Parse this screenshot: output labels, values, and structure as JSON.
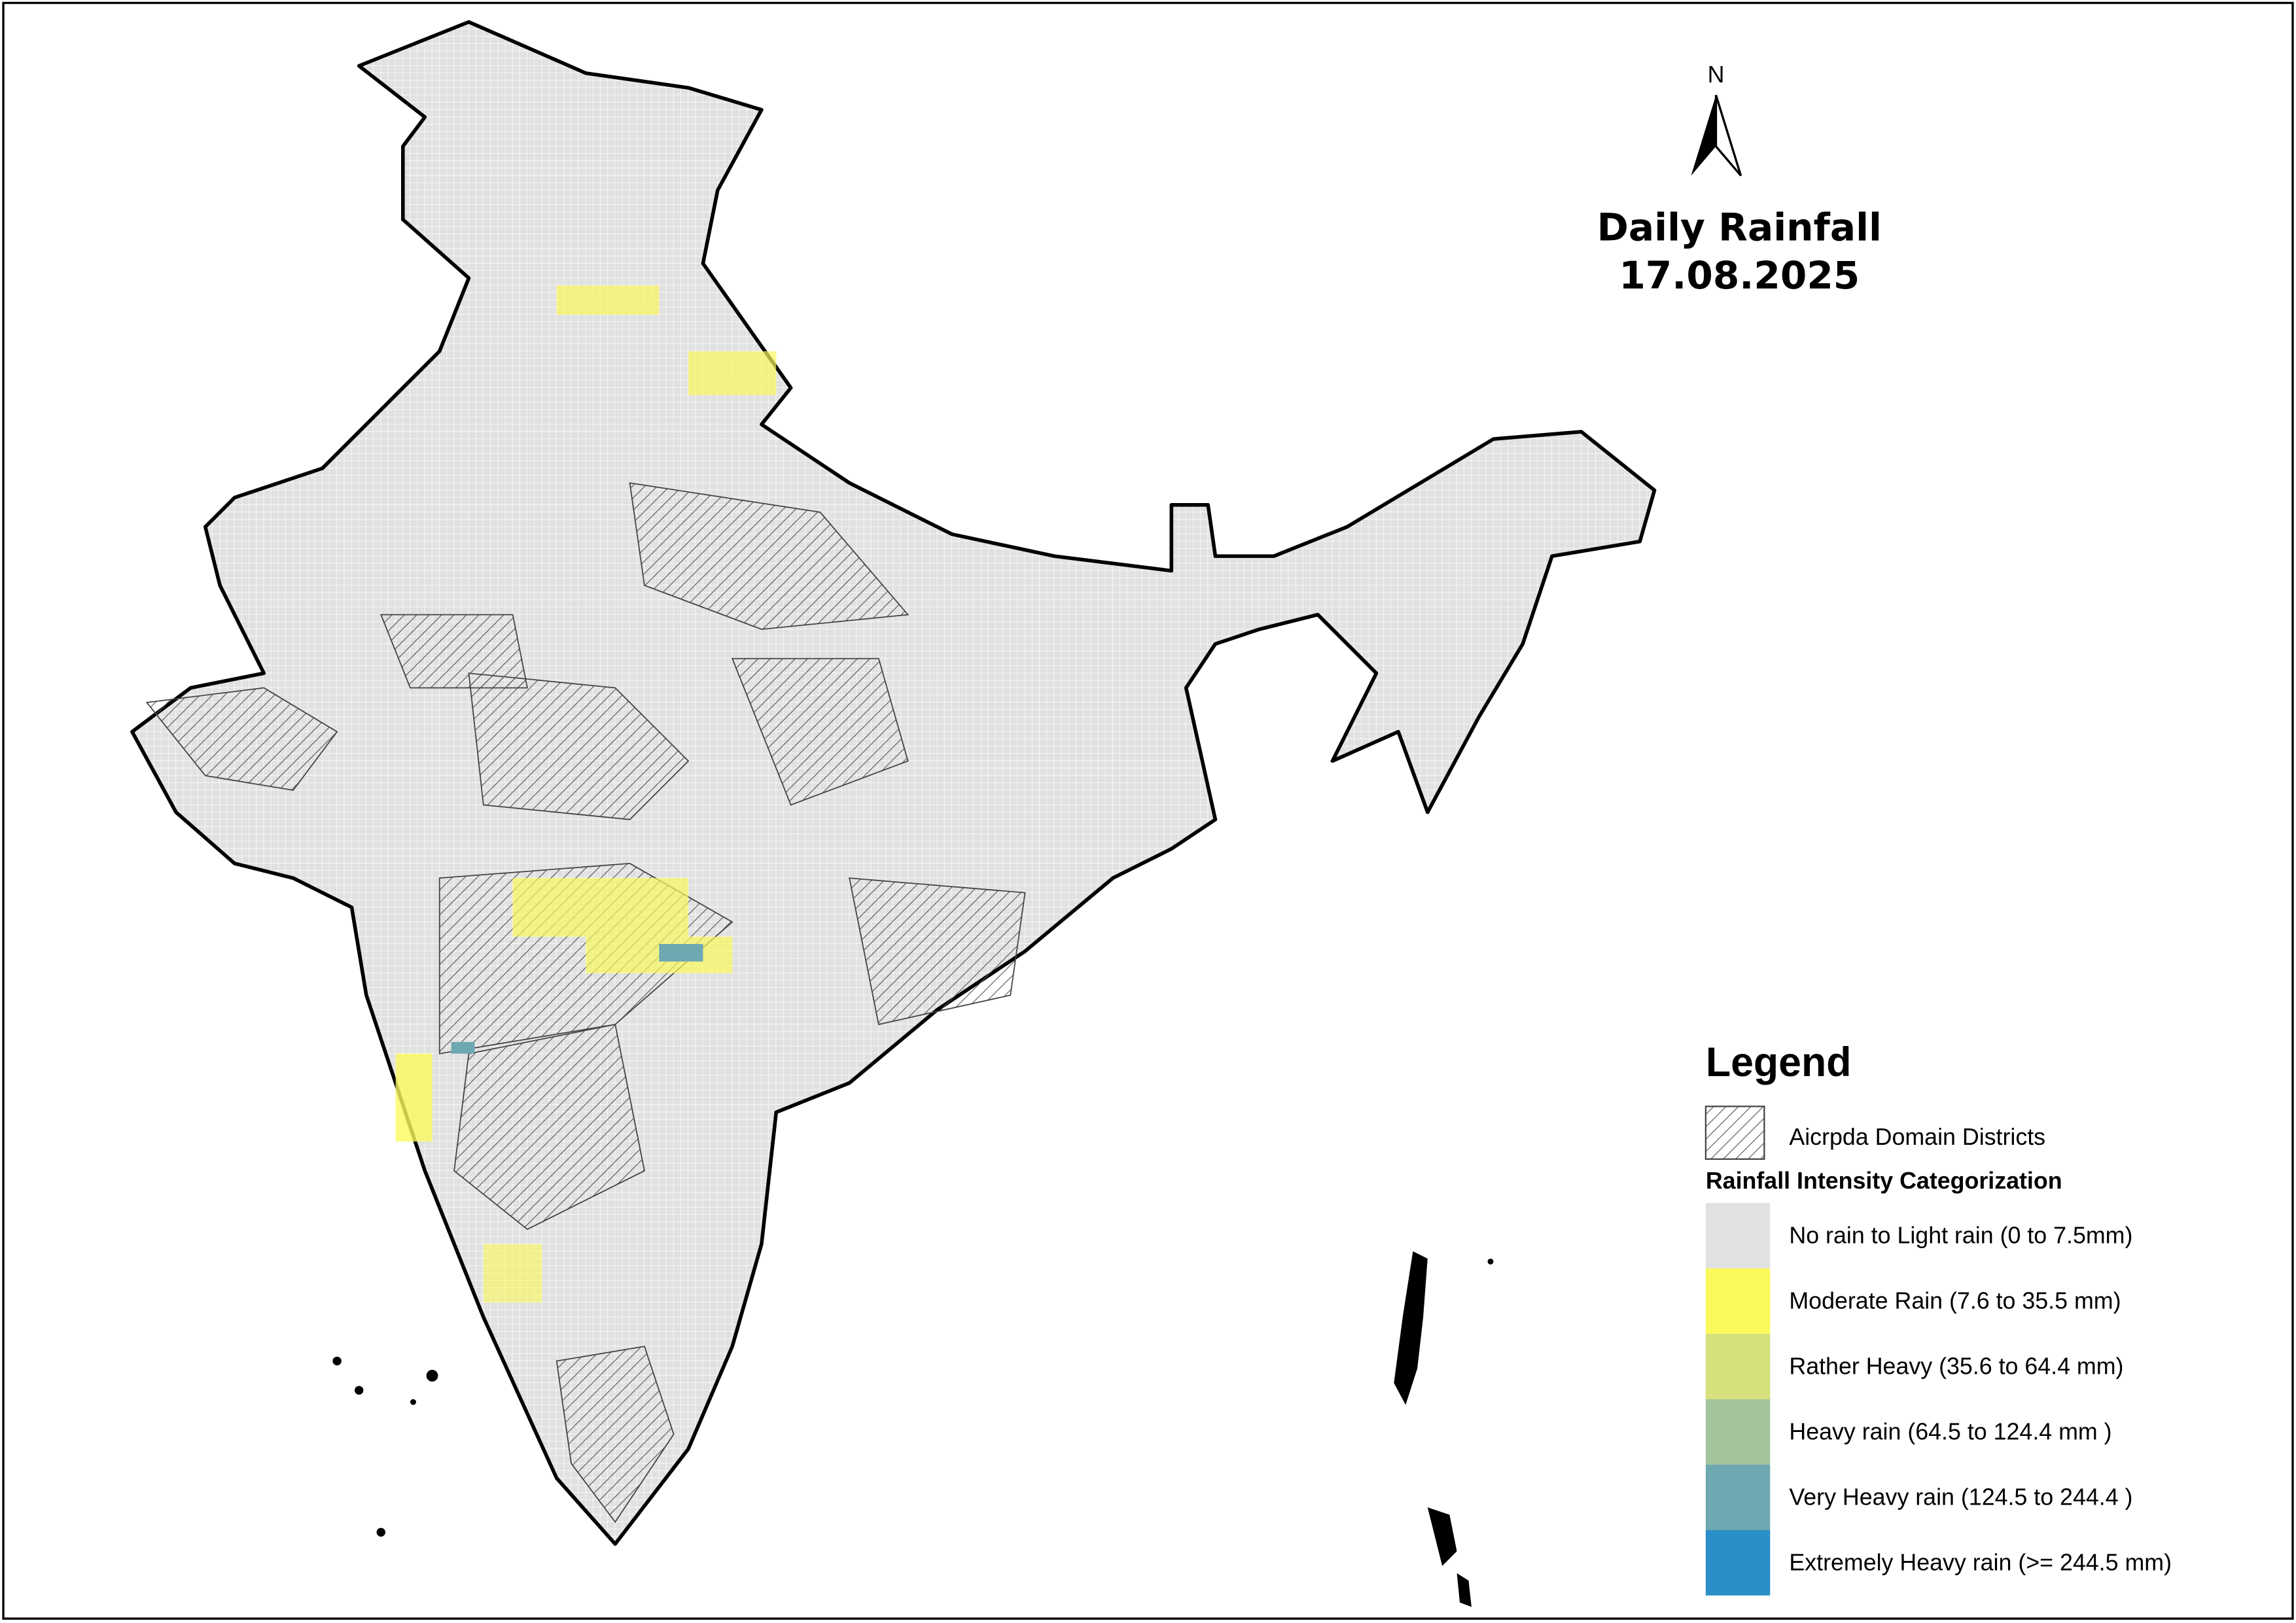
{
  "header": {
    "north": "N",
    "title": "Daily Rainfall",
    "date": "17.08.2025"
  },
  "legend": {
    "title": "Legend",
    "domain_label": "Aicrpda Domain Districts",
    "category_title": "Rainfall Intensity Categorization",
    "categories": [
      {
        "label": "No rain to Light rain (0 to 7.5mm)",
        "color": "#e1e1e1"
      },
      {
        "label": "Moderate Rain (7.6 to 35.5 mm)",
        "color": "#fafa5c"
      },
      {
        "label": "Rather Heavy (35.6 to 64.4 mm)",
        "color": "#d6e07c"
      },
      {
        "label": "Heavy rain (64.5 to 124.4 mm )",
        "color": "#a3c49c"
      },
      {
        "label": "Very Heavy rain (124.5 to 244.4 )",
        "color": "#6ea8b1"
      },
      {
        "label": "Extremely Heavy rain  (>= 244.5 mm)",
        "color": "#2b8fc7"
      }
    ]
  }
}
